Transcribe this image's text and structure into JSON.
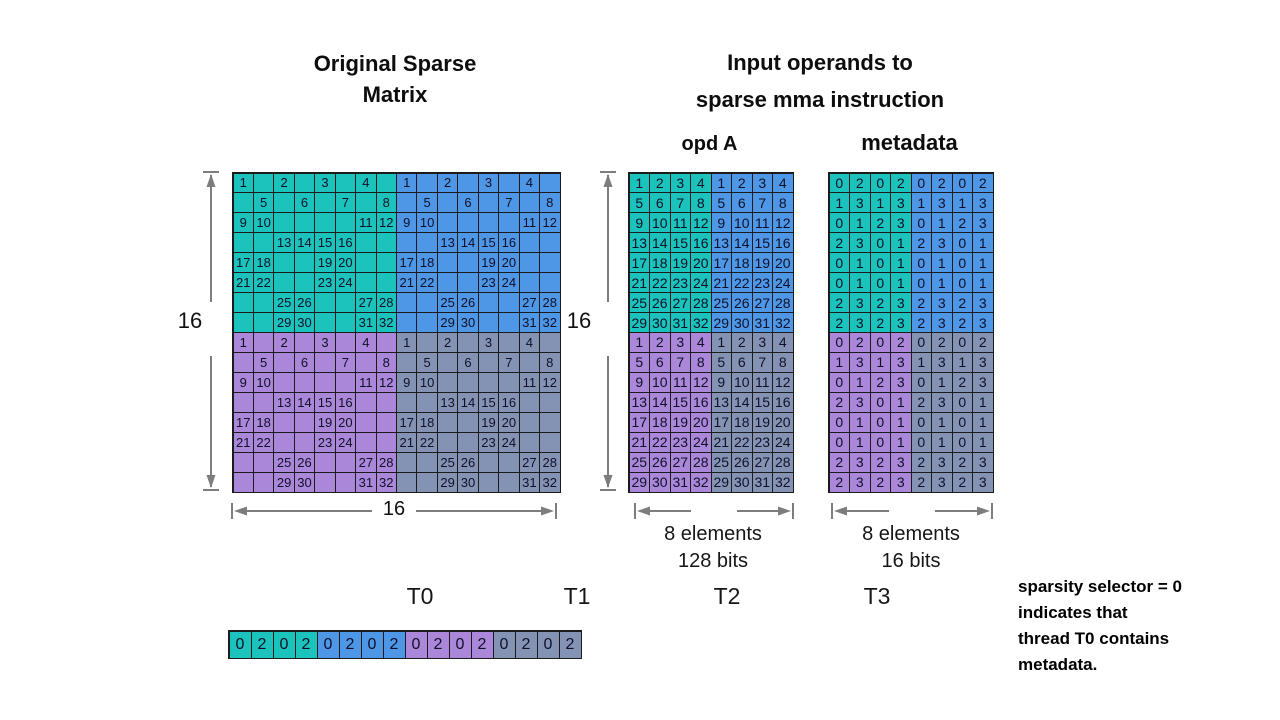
{
  "titles": {
    "original_line1": "Original Sparse",
    "original_line2": "Matrix",
    "input_line1": "Input operands to",
    "input_line2": "sparse mma instruction",
    "opd_a": "opd A",
    "metadata": "metadata"
  },
  "dimension_labels": {
    "original_height": "16",
    "original_width": "16",
    "opd_a_height": "16",
    "opd_a_width_line1": "8 elements",
    "opd_a_width_line2": "128 bits",
    "metadata_width_line1": "8 elements",
    "metadata_width_line2": "16 bits"
  },
  "thread_labels": [
    "T0",
    "T1",
    "T2",
    "T3"
  ],
  "note": {
    "line1": "sparsity selector = 0",
    "line2": "indicates that",
    "line3": "thread T0 contains",
    "line4": "metadata."
  },
  "colors": {
    "teal": "#1cc2bc",
    "blue": "#4e96e6",
    "purple": "#aa87d8",
    "gray": "#8493b4",
    "grid_border": "#1b1b1b",
    "arrow": "#7d7d7d"
  },
  "grids": {
    "original": {
      "rows": 16,
      "cols": 16,
      "cells": [
        [
          "1",
          "",
          "2",
          "",
          "3",
          "",
          "4",
          "",
          "1",
          "",
          "2",
          "",
          "3",
          "",
          "4",
          ""
        ],
        [
          "",
          "5",
          "",
          "6",
          "",
          "7",
          "",
          "8",
          "",
          "5",
          "",
          "6",
          "",
          "7",
          "",
          "8"
        ],
        [
          "9",
          "10",
          "",
          "",
          "",
          "",
          "11",
          "12",
          "9",
          "10",
          "",
          "",
          "",
          "",
          "11",
          "12"
        ],
        [
          "",
          "",
          "13",
          "14",
          "15",
          "16",
          "",
          "",
          "",
          "",
          "13",
          "14",
          "15",
          "16",
          "",
          ""
        ],
        [
          "17",
          "18",
          "",
          "",
          "19",
          "20",
          "",
          "",
          "17",
          "18",
          "",
          "",
          "19",
          "20",
          "",
          ""
        ],
        [
          "21",
          "22",
          "",
          "",
          "23",
          "24",
          "",
          "",
          "21",
          "22",
          "",
          "",
          "23",
          "24",
          "",
          ""
        ],
        [
          "",
          "",
          "25",
          "26",
          "",
          "",
          "27",
          "28",
          "",
          "",
          "25",
          "26",
          "",
          "",
          "27",
          "28"
        ],
        [
          "",
          "",
          "29",
          "30",
          "",
          "",
          "31",
          "32",
          "",
          "",
          "29",
          "30",
          "",
          "",
          "31",
          "32"
        ],
        [
          "1",
          "",
          "2",
          "",
          "3",
          "",
          "4",
          "",
          "1",
          "",
          "2",
          "",
          "3",
          "",
          "4",
          ""
        ],
        [
          "",
          "5",
          "",
          "6",
          "",
          "7",
          "",
          "8",
          "",
          "5",
          "",
          "6",
          "",
          "7",
          "",
          "8"
        ],
        [
          "9",
          "10",
          "",
          "",
          "",
          "",
          "11",
          "12",
          "9",
          "10",
          "",
          "",
          "",
          "",
          "11",
          "12"
        ],
        [
          "",
          "",
          "13",
          "14",
          "15",
          "16",
          "",
          "",
          "",
          "",
          "13",
          "14",
          "15",
          "16",
          "",
          ""
        ],
        [
          "17",
          "18",
          "",
          "",
          "19",
          "20",
          "",
          "",
          "17",
          "18",
          "",
          "",
          "19",
          "20",
          "",
          ""
        ],
        [
          "21",
          "22",
          "",
          "",
          "23",
          "24",
          "",
          "",
          "21",
          "22",
          "",
          "",
          "23",
          "24",
          "",
          ""
        ],
        [
          "",
          "",
          "25",
          "26",
          "",
          "",
          "27",
          "28",
          "",
          "",
          "25",
          "26",
          "",
          "",
          "27",
          "28"
        ],
        [
          "",
          "",
          "29",
          "30",
          "",
          "",
          "31",
          "32",
          "",
          "",
          "29",
          "30",
          "",
          "",
          "31",
          "32"
        ]
      ]
    },
    "opd_a": {
      "rows": 16,
      "cols": 8,
      "cells": [
        [
          "1",
          "2",
          "3",
          "4",
          "1",
          "2",
          "3",
          "4"
        ],
        [
          "5",
          "6",
          "7",
          "8",
          "5",
          "6",
          "7",
          "8"
        ],
        [
          "9",
          "10",
          "11",
          "12",
          "9",
          "10",
          "11",
          "12"
        ],
        [
          "13",
          "14",
          "15",
          "16",
          "13",
          "14",
          "15",
          "16"
        ],
        [
          "17",
          "18",
          "19",
          "20",
          "17",
          "18",
          "19",
          "20"
        ],
        [
          "21",
          "22",
          "23",
          "24",
          "21",
          "22",
          "23",
          "24"
        ],
        [
          "25",
          "26",
          "27",
          "28",
          "25",
          "26",
          "27",
          "28"
        ],
        [
          "29",
          "30",
          "31",
          "32",
          "29",
          "30",
          "31",
          "32"
        ],
        [
          "1",
          "2",
          "3",
          "4",
          "1",
          "2",
          "3",
          "4"
        ],
        [
          "5",
          "6",
          "7",
          "8",
          "5",
          "6",
          "7",
          "8"
        ],
        [
          "9",
          "10",
          "11",
          "12",
          "9",
          "10",
          "11",
          "12"
        ],
        [
          "13",
          "14",
          "15",
          "16",
          "13",
          "14",
          "15",
          "16"
        ],
        [
          "17",
          "18",
          "19",
          "20",
          "17",
          "18",
          "19",
          "20"
        ],
        [
          "21",
          "22",
          "23",
          "24",
          "21",
          "22",
          "23",
          "24"
        ],
        [
          "25",
          "26",
          "27",
          "28",
          "25",
          "26",
          "27",
          "28"
        ],
        [
          "29",
          "30",
          "31",
          "32",
          "29",
          "30",
          "31",
          "32"
        ]
      ]
    },
    "metadata": {
      "rows": 16,
      "cols": 8,
      "cells": [
        [
          "0",
          "2",
          "0",
          "2",
          "0",
          "2",
          "0",
          "2"
        ],
        [
          "1",
          "3",
          "1",
          "3",
          "1",
          "3",
          "1",
          "3"
        ],
        [
          "0",
          "1",
          "2",
          "3",
          "0",
          "1",
          "2",
          "3"
        ],
        [
          "2",
          "3",
          "0",
          "1",
          "2",
          "3",
          "0",
          "1"
        ],
        [
          "0",
          "1",
          "0",
          "1",
          "0",
          "1",
          "0",
          "1"
        ],
        [
          "0",
          "1",
          "0",
          "1",
          "0",
          "1",
          "0",
          "1"
        ],
        [
          "2",
          "3",
          "2",
          "3",
          "2",
          "3",
          "2",
          "3"
        ],
        [
          "2",
          "3",
          "2",
          "3",
          "2",
          "3",
          "2",
          "3"
        ],
        [
          "0",
          "2",
          "0",
          "2",
          "0",
          "2",
          "0",
          "2"
        ],
        [
          "1",
          "3",
          "1",
          "3",
          "1",
          "3",
          "1",
          "3"
        ],
        [
          "0",
          "1",
          "2",
          "3",
          "0",
          "1",
          "2",
          "3"
        ],
        [
          "2",
          "3",
          "0",
          "1",
          "2",
          "3",
          "0",
          "1"
        ],
        [
          "0",
          "1",
          "0",
          "1",
          "0",
          "1",
          "0",
          "1"
        ],
        [
          "0",
          "1",
          "0",
          "1",
          "0",
          "1",
          "0",
          "1"
        ],
        [
          "2",
          "3",
          "2",
          "3",
          "2",
          "3",
          "2",
          "3"
        ],
        [
          "2",
          "3",
          "2",
          "3",
          "2",
          "3",
          "2",
          "3"
        ]
      ]
    }
  },
  "selector_strip": {
    "cells": [
      "0",
      "2",
      "0",
      "2",
      "0",
      "2",
      "0",
      "2",
      "0",
      "2",
      "0",
      "2",
      "0",
      "2",
      "0",
      "2"
    ]
  }
}
